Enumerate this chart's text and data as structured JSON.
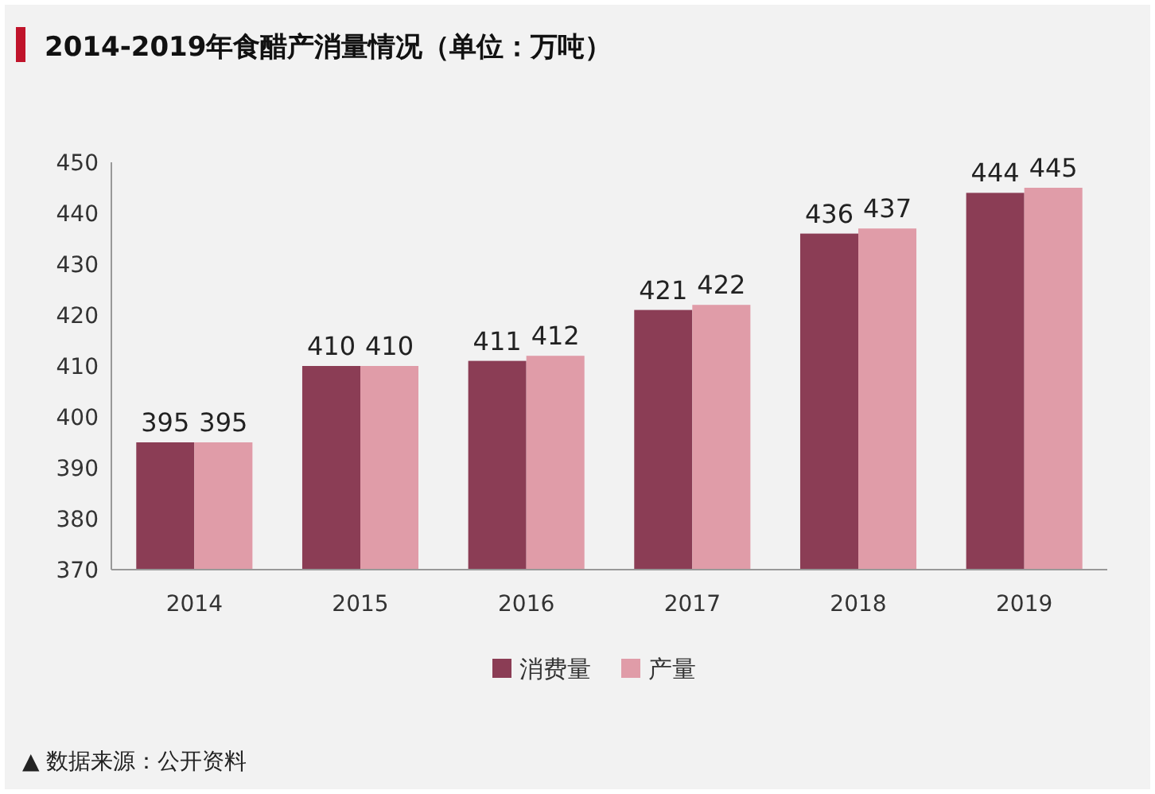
{
  "chart_data": {
    "type": "bar",
    "title": "2014-2019年食醋产消量情况（单位：万吨）",
    "categories": [
      "2014",
      "2015",
      "2016",
      "2017",
      "2018",
      "2019"
    ],
    "series": [
      {
        "name": "消费量",
        "color": "#8b3d55",
        "values": [
          395,
          410,
          411,
          421,
          436,
          444
        ]
      },
      {
        "name": "产量",
        "color": "#e09ca8",
        "values": [
          395,
          410,
          412,
          422,
          437,
          445
        ]
      }
    ],
    "ylim": [
      370,
      450
    ],
    "yticks": [
      370,
      380,
      390,
      400,
      410,
      420,
      430,
      440,
      450
    ],
    "grid": false,
    "legend": "bottom",
    "data_labels": true,
    "annotations": [
      "▲ 数据来源：公开资料"
    ]
  }
}
